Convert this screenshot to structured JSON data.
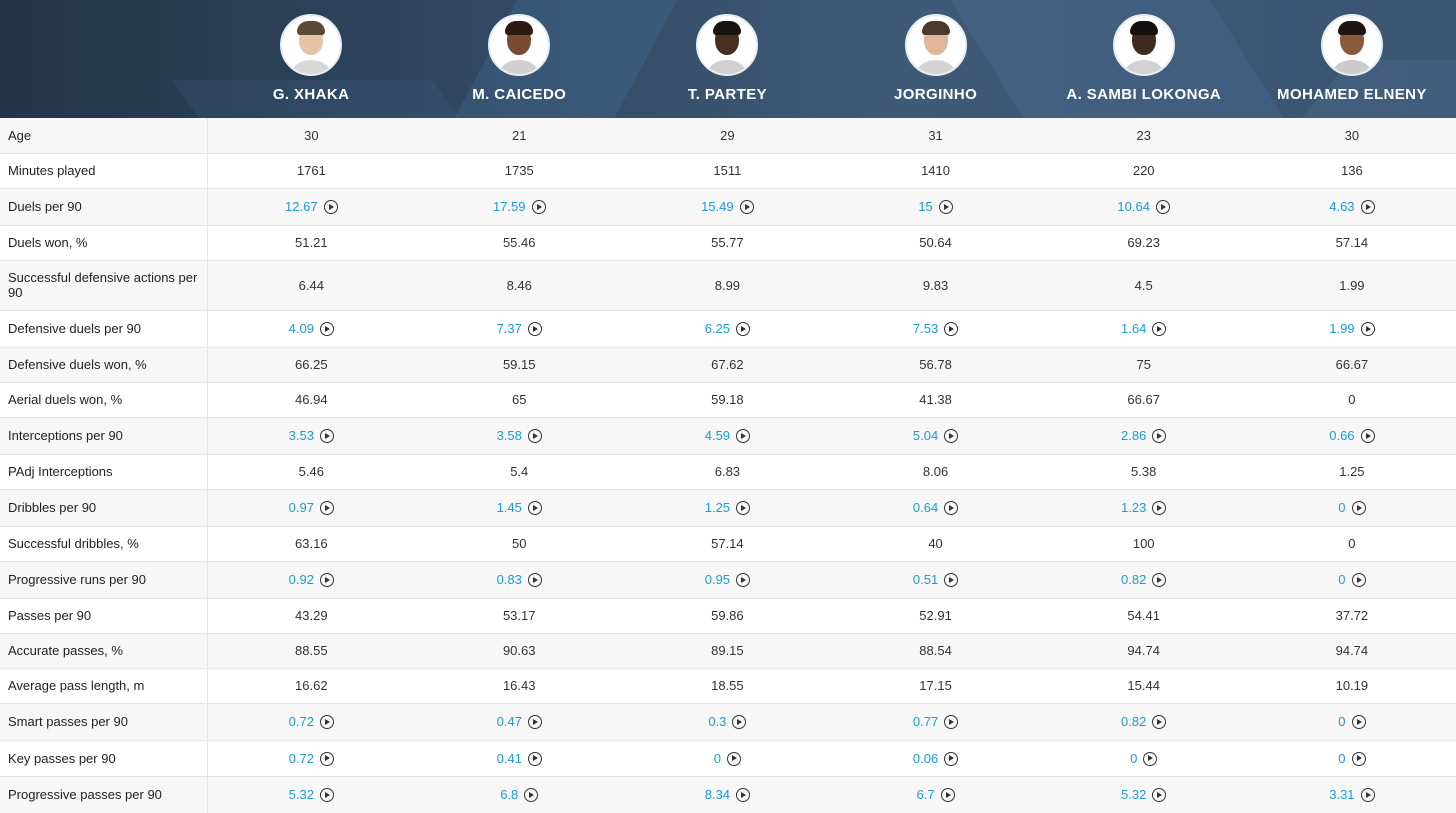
{
  "players": [
    {
      "name": "G. XHAKA",
      "skin": "#e8c4a6",
      "hair": "#5a4a3a",
      "shirt": "#d8d8d8"
    },
    {
      "name": "M. CAICEDO",
      "skin": "#7a4a32",
      "hair": "#2a1a12",
      "shirt": "#cfcfcf"
    },
    {
      "name": "T. PARTEY",
      "skin": "#4a2e22",
      "hair": "#1a1210",
      "shirt": "#d0d0d0"
    },
    {
      "name": "JORGINHO",
      "skin": "#e2b698",
      "hair": "#4a3a2c",
      "shirt": "#d4d4d4"
    },
    {
      "name": "A. SAMBI LOKONGA",
      "skin": "#3e2a20",
      "hair": "#151010",
      "shirt": "#d2d2d2"
    },
    {
      "name": "MOHAMED ELNENY",
      "skin": "#8a5a3c",
      "hair": "#1e1612",
      "shirt": "#cccccc"
    }
  ],
  "stats": [
    {
      "label": "Age",
      "link": false,
      "values": [
        "30",
        "21",
        "29",
        "31",
        "23",
        "30"
      ]
    },
    {
      "label": "Minutes played",
      "link": false,
      "values": [
        "1761",
        "1735",
        "1511",
        "1410",
        "220",
        "136"
      ]
    },
    {
      "label": "Duels per 90",
      "link": true,
      "values": [
        "12.67",
        "17.59",
        "15.49",
        "15",
        "10.64",
        "4.63"
      ]
    },
    {
      "label": "Duels won, %",
      "link": false,
      "values": [
        "51.21",
        "55.46",
        "55.77",
        "50.64",
        "69.23",
        "57.14"
      ]
    },
    {
      "label": "Successful defensive actions per 90",
      "link": false,
      "values": [
        "6.44",
        "8.46",
        "8.99",
        "9.83",
        "4.5",
        "1.99"
      ]
    },
    {
      "label": "Defensive duels per 90",
      "link": true,
      "values": [
        "4.09",
        "7.37",
        "6.25",
        "7.53",
        "1.64",
        "1.99"
      ]
    },
    {
      "label": "Defensive duels won, %",
      "link": false,
      "values": [
        "66.25",
        "59.15",
        "67.62",
        "56.78",
        "75",
        "66.67"
      ]
    },
    {
      "label": "Aerial duels won, %",
      "link": false,
      "values": [
        "46.94",
        "65",
        "59.18",
        "41.38",
        "66.67",
        "0"
      ]
    },
    {
      "label": "Interceptions per 90",
      "link": true,
      "values": [
        "3.53",
        "3.58",
        "4.59",
        "5.04",
        "2.86",
        "0.66"
      ]
    },
    {
      "label": "PAdj Interceptions",
      "link": false,
      "values": [
        "5.46",
        "5.4",
        "6.83",
        "8.06",
        "5.38",
        "1.25"
      ]
    },
    {
      "label": "Dribbles per 90",
      "link": true,
      "values": [
        "0.97",
        "1.45",
        "1.25",
        "0.64",
        "1.23",
        "0"
      ]
    },
    {
      "label": "Successful dribbles, %",
      "link": false,
      "values": [
        "63.16",
        "50",
        "57.14",
        "40",
        "100",
        "0"
      ]
    },
    {
      "label": "Progressive runs per 90",
      "link": true,
      "values": [
        "0.92",
        "0.83",
        "0.95",
        "0.51",
        "0.82",
        "0"
      ]
    },
    {
      "label": "Passes per 90",
      "link": false,
      "values": [
        "43.29",
        "53.17",
        "59.86",
        "52.91",
        "54.41",
        "37.72"
      ]
    },
    {
      "label": "Accurate passes, %",
      "link": false,
      "values": [
        "88.55",
        "90.63",
        "89.15",
        "88.54",
        "94.74",
        "94.74"
      ]
    },
    {
      "label": "Average pass length, m",
      "link": false,
      "values": [
        "16.62",
        "16.43",
        "18.55",
        "17.15",
        "15.44",
        "10.19"
      ]
    },
    {
      "label": "Smart passes per 90",
      "link": true,
      "values": [
        "0.72",
        "0.47",
        "0.3",
        "0.77",
        "0.82",
        "0"
      ]
    },
    {
      "label": "Key passes per 90",
      "link": true,
      "values": [
        "0.72",
        "0.41",
        "0",
        "0.06",
        "0",
        "0"
      ]
    },
    {
      "label": "Progressive passes per 90",
      "link": true,
      "values": [
        "5.32",
        "6.8",
        "8.34",
        "6.7",
        "5.32",
        "3.31"
      ]
    }
  ],
  "colors": {
    "link": "#1d9bd1",
    "header_dark": "#243447",
    "row_alt": "#f7f7f7"
  },
  "icons": {
    "play": "play-circle-icon"
  }
}
